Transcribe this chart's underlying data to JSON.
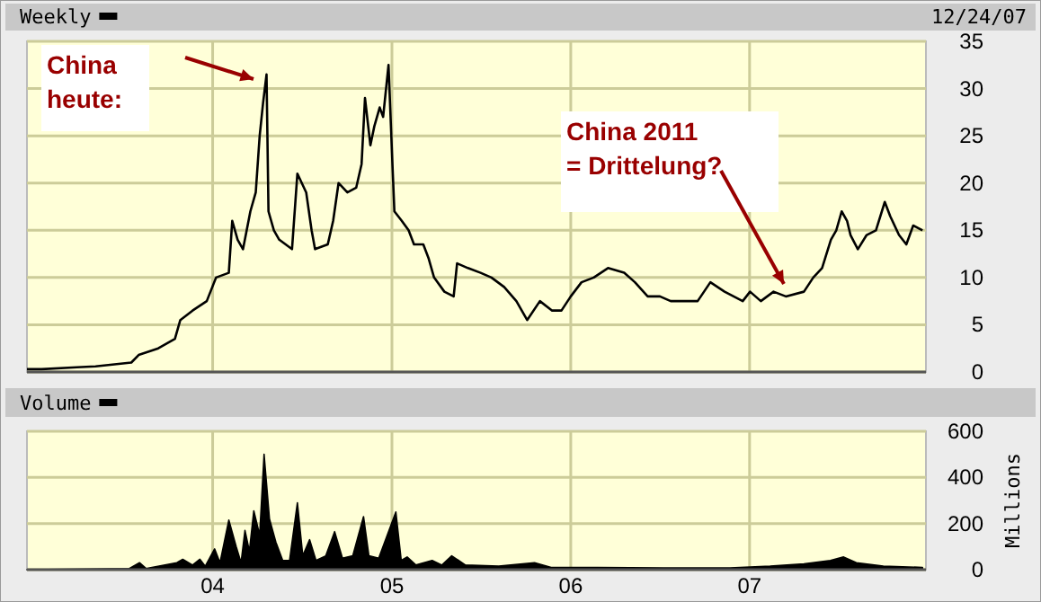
{
  "chart_data": [
    {
      "type": "line",
      "legend": "top left",
      "grid": true,
      "tick_labels": "y",
      "xlim": [
        "2002-12-18",
        "2007-12-27"
      ],
      "ylim": [
        0,
        35
      ],
      "yticks": [
        0,
        5,
        10,
        15,
        20,
        25,
        30,
        35
      ],
      "xticks": [
        {
          "value": "2004",
          "label": null
        },
        {
          "value": "2005",
          "label": null
        },
        {
          "value": "2006",
          "label": null
        },
        {
          "value": "2007",
          "label": null
        }
      ],
      "annotations": [
        "12/24/07",
        "China\nheute:",
        "China 2011\n= Drittelung?"
      ],
      "series": [
        {
          "name": "Weekly",
          "color": "#000000",
          "x": [
            "2002-12-18",
            "2003-01-17",
            "2003-03-30",
            "2003-05-07",
            "2003-07-19",
            "2003-08-03",
            "2003-09-12",
            "2003-10-16",
            "2003-10-27",
            "2003-11-21",
            "2003-12-20",
            "2004-01-08",
            "2004-02-03",
            "2004-02-10",
            "2004-02-21",
            "2004-03-03",
            "2004-03-18",
            "2004-03-29",
            "2004-04-06",
            "2004-04-13",
            "2004-04-20",
            "2004-04-24",
            "2004-05-05",
            "2004-05-16",
            "2004-06-11",
            "2004-06-22",
            "2004-07-10",
            "2004-07-21",
            "2004-07-28",
            "2004-08-23",
            "2004-09-03",
            "2004-09-14",
            "2004-10-02",
            "2004-10-20",
            "2004-10-31",
            "2004-11-07",
            "2004-11-18",
            "2004-11-26",
            "2004-12-07",
            "2004-12-14",
            "2004-12-25",
            "2005-01-02",
            "2005-01-06",
            "2005-01-21",
            "2005-02-04",
            "2005-02-15",
            "2005-03-06",
            "2005-03-17",
            "2005-03-28",
            "2005-04-18",
            "2005-05-07",
            "2005-05-14",
            "2005-06-05",
            "2005-07-01",
            "2005-07-23",
            "2005-08-18",
            "2005-09-12",
            "2005-10-04",
            "2005-10-30",
            "2005-11-24",
            "2005-12-13",
            "2006-01-01",
            "2006-01-23",
            "2006-02-17",
            "2006-03-18",
            "2006-04-20",
            "2006-05-12",
            "2006-06-07",
            "2006-07-02",
            "2006-07-24",
            "2006-08-19",
            "2006-09-17",
            "2006-10-13",
            "2006-11-11",
            "2006-12-18",
            "2007-01-02",
            "2007-01-24",
            "2007-02-19",
            "2007-03-16",
            "2007-04-22",
            "2007-05-11",
            "2007-05-29",
            "2007-06-16",
            "2007-06-27",
            "2007-07-08",
            "2007-07-19",
            "2007-07-26",
            "2007-08-10",
            "2007-08-28",
            "2007-09-16",
            "2007-10-04",
            "2007-10-15",
            "2007-11-02",
            "2007-11-17",
            "2007-12-01",
            "2007-12-20"
          ],
          "values": [
            0.3,
            0.3,
            0.5,
            0.6,
            1.0,
            1.8,
            2.5,
            3.5,
            5.5,
            6.5,
            7.5,
            10,
            10.5,
            16,
            14,
            13,
            17,
            19,
            25,
            28.5,
            31.5,
            17,
            15,
            14,
            13,
            21,
            19,
            15,
            13,
            13.5,
            16,
            20,
            19,
            19.5,
            22,
            29,
            24,
            26,
            28,
            27,
            32.5,
            22,
            17,
            16,
            15,
            13.5,
            13.5,
            12,
            10,
            8.5,
            8,
            11.5,
            11,
            10.5,
            10,
            9,
            7.5,
            5.5,
            7.5,
            6.5,
            6.5,
            8,
            9.5,
            10,
            11,
            10.5,
            9.5,
            8,
            8,
            7.5,
            7.5,
            7.5,
            9.5,
            8.5,
            7.5,
            8.5,
            7.5,
            8.5,
            8,
            8.5,
            10,
            11,
            14,
            15,
            17,
            16,
            14.5,
            13,
            14.5,
            15,
            18,
            16.5,
            14.5,
            13.5,
            15.5,
            15
          ]
        }
      ]
    },
    {
      "type": "area",
      "legend": "top left",
      "grid": true,
      "ylabel": "Millions",
      "xlim": [
        "2002-12-18",
        "2007-12-27"
      ],
      "ylim": [
        0,
        600
      ],
      "yticks": [
        0,
        200,
        400,
        600
      ],
      "xticks": [
        {
          "value": "2004",
          "label": "04"
        },
        {
          "value": "2005",
          "label": "05"
        },
        {
          "value": "2006",
          "label": "06"
        },
        {
          "value": "2007",
          "label": "07"
        }
      ],
      "series": [
        {
          "name": "Volume",
          "color": "#000000",
          "x": [
            "2002-12-18",
            "2003-07-15",
            "2003-08-05",
            "2003-08-18",
            "2003-10-20",
            "2003-11-01",
            "2003-11-21",
            "2003-12-06",
            "2003-12-17",
            "2004-01-05",
            "2004-01-16",
            "2004-02-03",
            "2004-02-18",
            "2004-02-28",
            "2004-03-07",
            "2004-03-16",
            "2004-03-25",
            "2004-04-06",
            "2004-04-15",
            "2004-04-26",
            "2004-05-09",
            "2004-05-23",
            "2004-06-06",
            "2004-06-22",
            "2004-07-03",
            "2004-07-17",
            "2004-07-30",
            "2004-08-19",
            "2004-09-06",
            "2004-09-22",
            "2004-10-13",
            "2004-11-04",
            "2004-11-15",
            "2004-12-05",
            "2005-01-09",
            "2005-01-20",
            "2005-02-01",
            "2005-02-19",
            "2005-03-24",
            "2005-04-13",
            "2005-05-03",
            "2005-05-31",
            "2005-08-07",
            "2005-10-19",
            "2005-11-22",
            "2006-02-24",
            "2006-07-09",
            "2006-11-22",
            "2007-02-12",
            "2007-04-22",
            "2007-06-15",
            "2007-07-12",
            "2007-08-07",
            "2007-10-01",
            "2007-12-20"
          ],
          "values": [
            0,
            5,
            30,
            5,
            30,
            45,
            20,
            45,
            15,
            90,
            30,
            215,
            100,
            30,
            170,
            80,
            255,
            150,
            500,
            220,
            120,
            40,
            40,
            290,
            60,
            130,
            40,
            60,
            165,
            50,
            60,
            230,
            60,
            50,
            250,
            40,
            55,
            20,
            40,
            20,
            60,
            20,
            15,
            30,
            10,
            10,
            8,
            8,
            15,
            25,
            40,
            55,
            30,
            15,
            10
          ]
        }
      ]
    }
  ]
}
